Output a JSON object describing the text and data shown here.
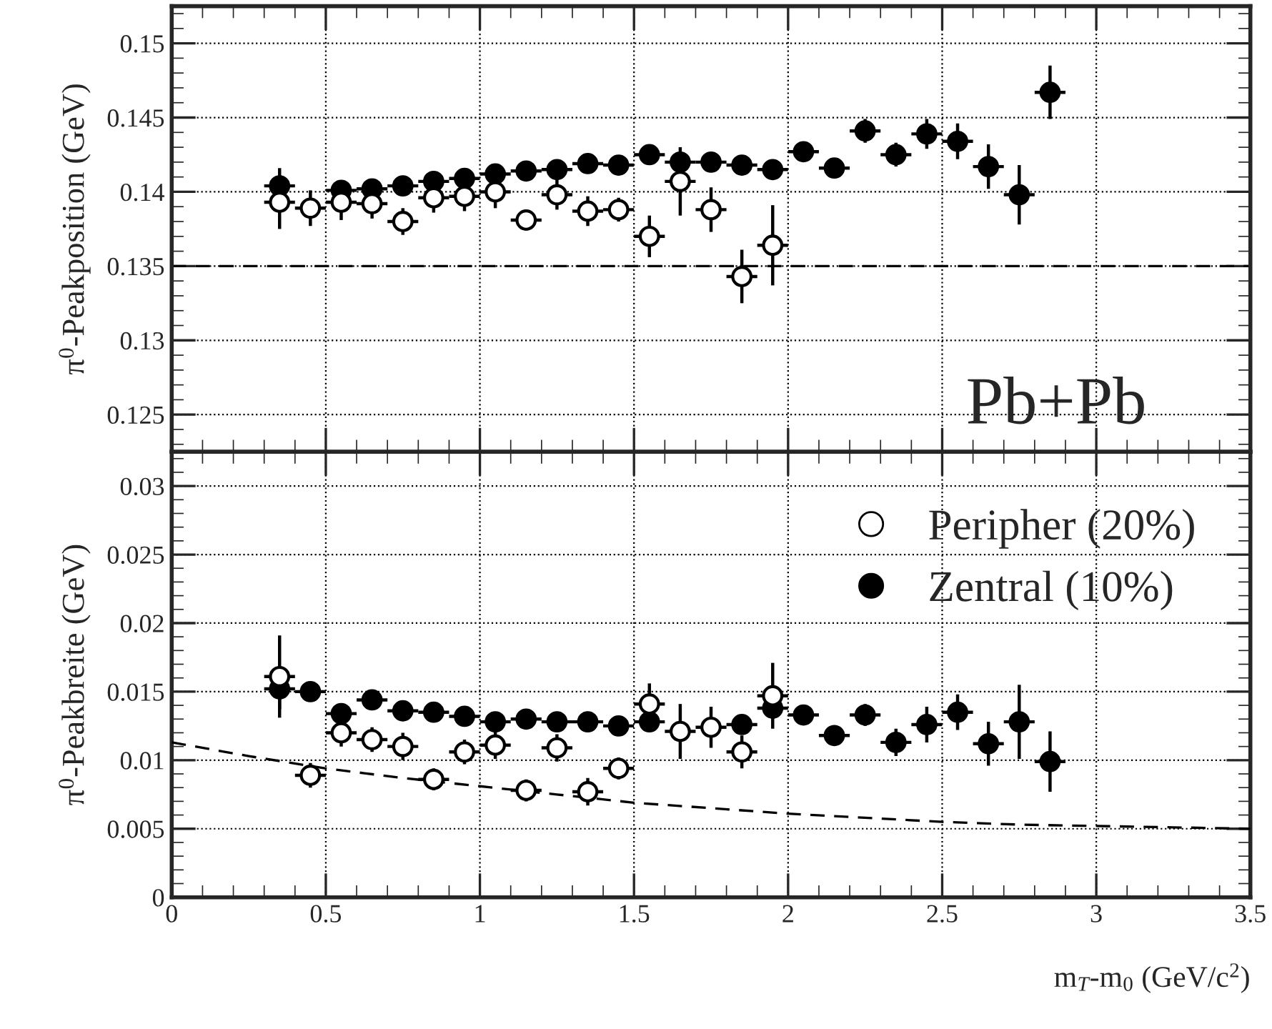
{
  "chart_data": [
    {
      "type": "scatter",
      "ylabel": "π$^{0}$-Peakposition (GeV)",
      "annotations": [
        "Pb+Pb"
      ],
      "xlim": [
        0,
        3.5
      ],
      "xticks": [
        0,
        0.5,
        1,
        1.5,
        2,
        2.5,
        3,
        3.5
      ],
      "ylim": [
        0.1225,
        0.1525
      ],
      "yticks": [
        0.125,
        0.13,
        0.135,
        0.14,
        0.145,
        0.15
      ],
      "tick_labels": "y",
      "grid": true,
      "ref_lines": [
        {
          "axis": "y",
          "value": 0.135,
          "color": "#000000",
          "line_style": "dashed"
        }
      ],
      "series": [
        {
          "color": "#000000",
          "marker": "circle",
          "x": [
            0.35,
            0.55,
            0.65,
            0.75,
            0.85,
            0.95,
            1.05,
            1.15,
            1.25,
            1.35,
            1.45,
            1.55,
            1.65,
            1.75,
            1.85,
            1.95,
            2.05,
            2.15,
            2.25,
            2.35,
            2.45,
            2.55,
            2.65,
            2.75,
            2.85
          ],
          "values": [
            0.1404,
            0.1401,
            0.1402,
            0.1404,
            0.1407,
            0.1409,
            0.1412,
            0.1414,
            0.1415,
            0.1419,
            0.1418,
            0.1425,
            0.142,
            0.142,
            0.1418,
            0.1415,
            0.1427,
            0.1416,
            0.1441,
            0.1425,
            0.1439,
            0.1434,
            0.1417,
            0.1398,
            0.1467
          ],
          "errors": [
            0.0012,
            0.0004,
            0.0004,
            0.0004,
            0.0004,
            0.0004,
            0.0004,
            0.0004,
            0.0004,
            0.0004,
            0.0004,
            0.0004,
            0.0006,
            0.0004,
            0.0004,
            0.0004,
            0.0004,
            0.0004,
            0.0008,
            0.0008,
            0.001,
            0.0012,
            0.0015,
            0.002,
            0.0018
          ],
          "xerrors": [
            0.05,
            0.05,
            0.05,
            0.05,
            0.05,
            0.05,
            0.05,
            0.05,
            0.05,
            0.05,
            0.05,
            0.05,
            0.05,
            0.05,
            0.05,
            0.05,
            0.05,
            0.05,
            0.05,
            0.05,
            0.05,
            0.05,
            0.05,
            0.05,
            0.05
          ]
        },
        {
          "color": "#ffffff",
          "marker": "circle",
          "x": [
            0.35,
            0.45,
            0.55,
            0.65,
            0.75,
            0.85,
            0.95,
            1.05,
            1.15,
            1.25,
            1.35,
            1.45,
            1.55,
            1.65,
            1.75,
            1.85,
            1.95
          ],
          "values": [
            0.1393,
            0.1389,
            0.1393,
            0.1392,
            0.138,
            0.1396,
            0.1397,
            0.14,
            0.1381,
            0.1398,
            0.1387,
            0.1388,
            0.137,
            0.1407,
            0.1388,
            0.1343,
            0.1364
          ],
          "errors": [
            0.0018,
            0.0012,
            0.0012,
            0.001,
            0.0009,
            0.001,
            0.001,
            0.0011,
            0.0007,
            0.001,
            0.001,
            0.0008,
            0.0014,
            0.0023,
            0.0015,
            0.0018,
            0.0027
          ],
          "xerrors": [
            0.05,
            0.05,
            0.05,
            0.05,
            0.05,
            0.05,
            0.05,
            0.05,
            0.05,
            0.05,
            0.05,
            0.05,
            0.05,
            0.05,
            0.05,
            0.05,
            0.05
          ]
        }
      ]
    },
    {
      "type": "scatter",
      "ylabel": "π$^{0}$-Peakbreite (GeV)",
      "xlabel": "m$_{T}$-m$_{0}$ (GeV/c$^{2}$)",
      "xlim": [
        0,
        3.5
      ],
      "xticks": [
        0,
        0.5,
        1,
        1.5,
        2,
        2.5,
        3,
        3.5
      ],
      "ylim": [
        0,
        0.0325
      ],
      "yticks": [
        0,
        0.005,
        0.01,
        0.015,
        0.02,
        0.025,
        0.03
      ],
      "grid": true,
      "legend": "top right",
      "series": [
        {
          "type": "line",
          "color": "#000000",
          "marker": "none",
          "line_style": "dashed",
          "x": [
            0,
            0.25,
            0.5,
            0.75,
            1,
            1.25,
            1.5,
            1.75,
            2,
            2.25,
            2.5,
            2.75,
            3,
            3.25,
            3.5
          ],
          "values": [
            0.0113,
            0.0103,
            0.0094,
            0.0087,
            0.0081,
            0.0075,
            0.0069,
            0.0065,
            0.0061,
            0.0058,
            0.0055,
            0.0053,
            0.0052,
            0.0051,
            0.005
          ]
        },
        {
          "name": "Zentral (10%)",
          "color": "#000000",
          "marker": "circle",
          "x": [
            0.35,
            0.45,
            0.55,
            0.65,
            0.75,
            0.85,
            0.95,
            1.05,
            1.15,
            1.25,
            1.35,
            1.45,
            1.55,
            1.65,
            1.75,
            1.85,
            1.95,
            2.05,
            2.15,
            2.25,
            2.35,
            2.45,
            2.55,
            2.65,
            2.75,
            2.85
          ],
          "values": [
            0.0152,
            0.015,
            0.0134,
            0.0144,
            0.0136,
            0.0135,
            0.0132,
            0.0128,
            0.013,
            0.0128,
            0.0128,
            0.0125,
            0.0128,
            null,
            null,
            0.0126,
            0.0138,
            0.0133,
            0.0118,
            0.0133,
            0.0113,
            0.0126,
            0.0135,
            0.0112,
            0.0128,
            0.0099
          ],
          "errors": [
            0.0015,
            0.0004,
            0.0004,
            0.0004,
            0.0004,
            0.0004,
            0.0004,
            0.0004,
            0.0004,
            0.0004,
            0.0004,
            0.0004,
            0.0004,
            null,
            null,
            0.0004,
            0.0008,
            0.0006,
            0.0006,
            0.0008,
            0.001,
            0.0013,
            0.0013,
            0.0016,
            0.0027,
            0.0022
          ],
          "xerrors": [
            0.05,
            0.05,
            0.05,
            0.05,
            0.05,
            0.05,
            0.05,
            0.05,
            0.05,
            0.05,
            0.05,
            0.05,
            0.05,
            null,
            null,
            0.05,
            0.05,
            0.05,
            0.05,
            0.05,
            0.05,
            0.05,
            0.05,
            0.05,
            0.05,
            0.05
          ]
        },
        {
          "name": "Peripher (20%)",
          "color": "#ffffff",
          "marker": "circle",
          "x": [
            0.35,
            0.45,
            0.55,
            0.65,
            0.75,
            0.85,
            0.95,
            1.05,
            1.15,
            1.25,
            1.35,
            1.45,
            1.55,
            1.65,
            1.75,
            1.85,
            1.95
          ],
          "values": [
            0.0161,
            0.0089,
            0.012,
            0.0115,
            0.011,
            0.0086,
            0.0106,
            0.0111,
            0.0078,
            0.0109,
            0.0077,
            0.0094,
            0.0141,
            0.0121,
            0.0124,
            0.0106,
            0.0147
          ],
          "errors": [
            0.003,
            0.0009,
            0.001,
            0.0009,
            0.001,
            0.0008,
            0.0009,
            0.001,
            0.0008,
            0.001,
            0.001,
            0.0008,
            0.0015,
            0.002,
            0.0015,
            0.0012,
            0.0024
          ],
          "xerrors": [
            0.05,
            0.05,
            0.05,
            0.05,
            0.05,
            0.05,
            0.05,
            0.05,
            0.05,
            0.05,
            0.05,
            0.05,
            0.05,
            0.05,
            0.05,
            0.05,
            0.05
          ]
        }
      ]
    }
  ]
}
